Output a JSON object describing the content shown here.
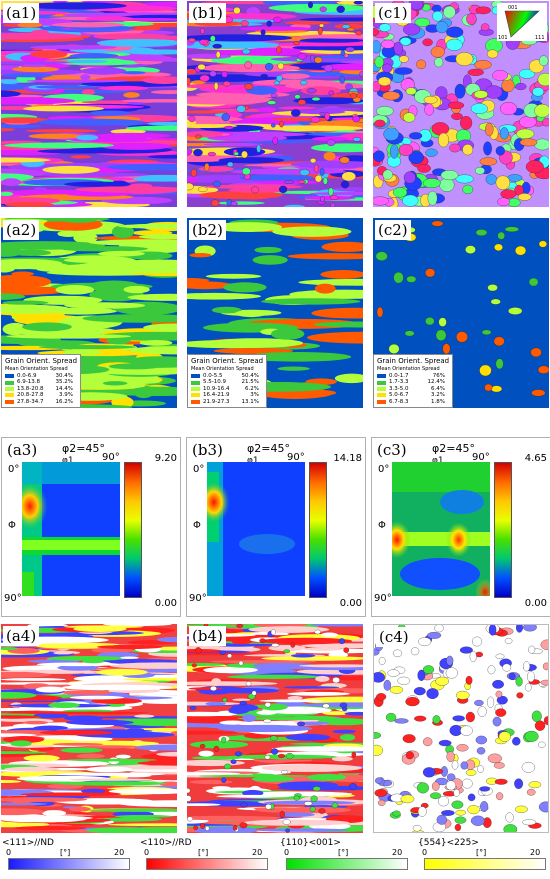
{
  "panels_top": [
    {
      "label": "(a1)"
    },
    {
      "label": "(b1)"
    },
    {
      "label": "(c1)"
    }
  ],
  "ipf_key": {
    "t001": "001",
    "t101": "101",
    "t111": "111"
  },
  "panels_kam": [
    {
      "label": "(a2)",
      "legend": {
        "title": "Grain Orient. Spread",
        "subtitle": "Mean Orientation Spread",
        "rows": [
          [
            "0.0-6.9",
            "30.4%"
          ],
          [
            "6.9-13.8",
            "35.2%"
          ],
          [
            "13.8-20.8",
            "14.4%"
          ],
          [
            "20.8-27.8",
            "3.9%"
          ],
          [
            "27.8-34.7",
            "16.2%"
          ]
        ]
      }
    },
    {
      "label": "(b2)",
      "legend": {
        "title": "Grain Orient. Spread",
        "subtitle": "Mean Orientation Spread",
        "rows": [
          [
            "0.0-5.5",
            "50.4%"
          ],
          [
            "5.5-10.9",
            "21.5%"
          ],
          [
            "10.9-16.4",
            "6.2%"
          ],
          [
            "16.4-21.9",
            "3%"
          ],
          [
            "21.9-27.3",
            "13.1%"
          ]
        ]
      }
    },
    {
      "label": "(c2)",
      "legend": {
        "title": "Grain Orient. Spread",
        "subtitle": "Mean Orientation Spread",
        "rows": [
          [
            "0.0-1.7",
            "76%"
          ],
          [
            "1.7-3.3",
            "12.4%"
          ],
          [
            "3.3-5.0",
            "6.4%"
          ],
          [
            "5.0-6.7",
            "3.2%"
          ],
          [
            "6.7-8.3",
            "1.8%"
          ]
        ]
      }
    }
  ],
  "legend_colors": [
    "#0050c0",
    "#3cc83c",
    "#b4ff3c",
    "#ffe000",
    "#ff5a00"
  ],
  "panels_odf": [
    {
      "label": "(a3)",
      "title": "φ2=45°",
      "phi1": "φ1",
      "x0": "0°",
      "x90": "90°",
      "y0": "0°",
      "phi": "Φ",
      "y90": "90°",
      "max": "9.20",
      "min": "0.00"
    },
    {
      "label": "(b3)",
      "title": "φ2=45°",
      "phi1": "φ1",
      "x0": "0°",
      "x90": "90°",
      "y0": "0°",
      "phi": "Φ",
      "y90": "90°",
      "max": "14.18",
      "min": "0.00"
    },
    {
      "label": "(c3)",
      "title": "φ2=45°",
      "phi1": "φ1",
      "x0": "0°",
      "x90": "90°",
      "y0": "0°",
      "phi": "Φ",
      "y90": "90°",
      "max": "4.65",
      "min": "0.00"
    }
  ],
  "panels_tex": [
    {
      "label": "(a4)"
    },
    {
      "label": "(b4)"
    },
    {
      "label": "(c4)"
    }
  ],
  "bottom_bars": [
    {
      "label": "<111>//ND",
      "min": "0",
      "unit": "[°]",
      "max": "20",
      "c0": "#1a1aff",
      "c1": "#ffffff"
    },
    {
      "label": "<110>//RD",
      "min": "0",
      "unit": "[°]",
      "max": "20",
      "c0": "#ff0000",
      "c1": "#ffffff"
    },
    {
      "label": "{110}<001>",
      "min": "0",
      "unit": "[°]",
      "max": "20",
      "c0": "#00e000",
      "c1": "#ffffff"
    },
    {
      "label": "{554}<225>",
      "min": "0",
      "unit": "[°]",
      "max": "20",
      "c0": "#ffff00",
      "c1": "#ffffff"
    }
  ]
}
